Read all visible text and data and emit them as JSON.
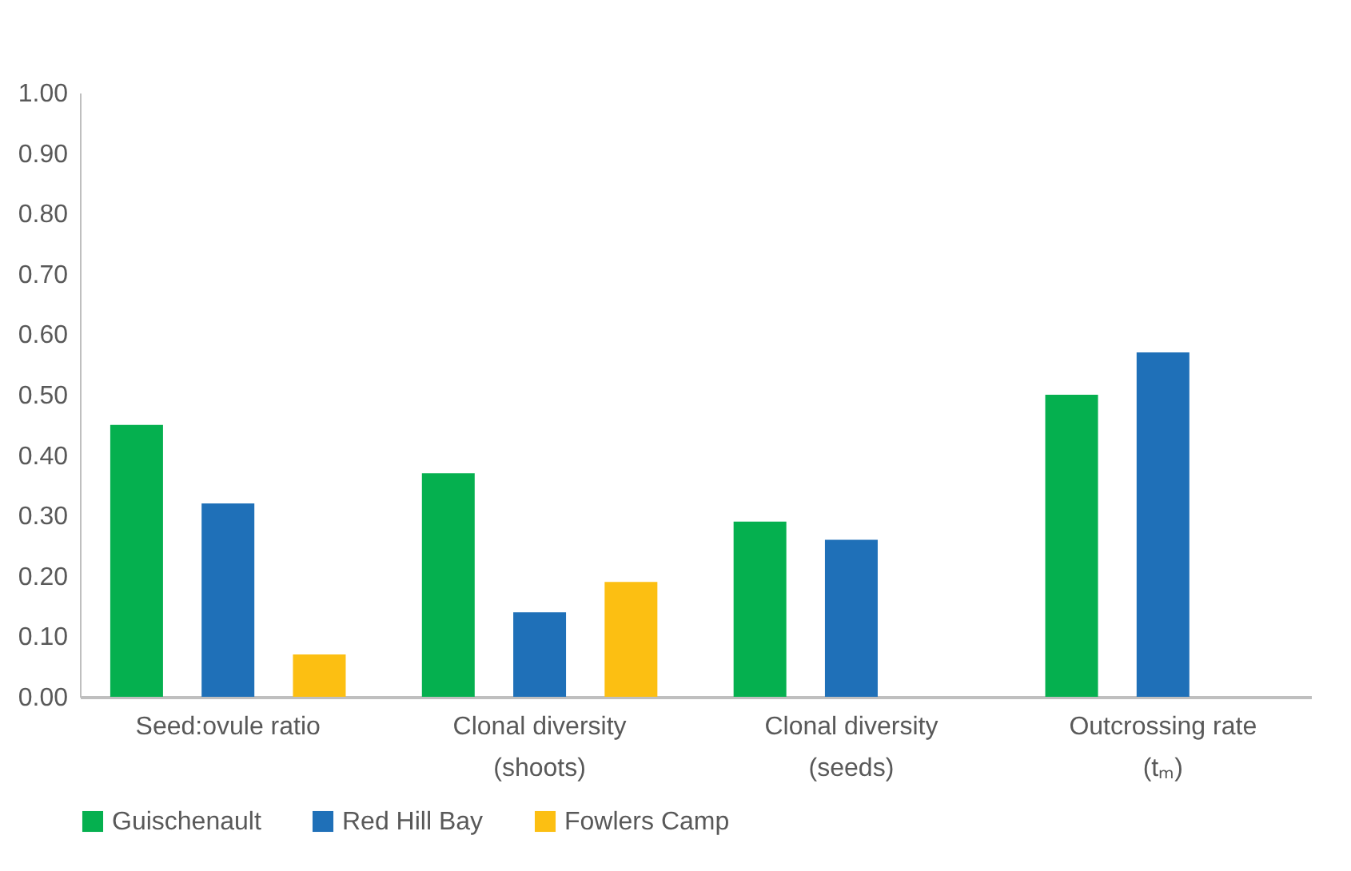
{
  "chart_data": {
    "type": "bar",
    "categories": [
      "Seed:ovule ratio",
      "Clonal diversity\n(shoots)",
      "Clonal diversity\n(seeds)",
      "Outcrossing rate\n(tₘ)"
    ],
    "series": [
      {
        "name": "Guischenault",
        "color": "#05b04f",
        "values": [
          0.45,
          0.37,
          0.29,
          0.5
        ]
      },
      {
        "name": "Red Hill Bay",
        "color": "#1f70b8",
        "values": [
          0.32,
          0.14,
          0.26,
          0.57
        ]
      },
      {
        "name": "Fowlers Camp",
        "color": "#fcbf12",
        "values": [
          0.07,
          0.19,
          null,
          null
        ]
      }
    ],
    "ylim": [
      0,
      1
    ],
    "yticks": [
      {
        "value": 0,
        "label": "0.00"
      },
      {
        "value": 0.1,
        "label": "0.10"
      },
      {
        "value": 0.2,
        "label": "0.20"
      },
      {
        "value": 0.3,
        "label": "0.30"
      },
      {
        "value": 0.4,
        "label": "0.40"
      },
      {
        "value": 0.5,
        "label": "0.50"
      },
      {
        "value": 0.6,
        "label": "0.60"
      },
      {
        "value": 0.7,
        "label": "0.70"
      },
      {
        "value": 0.8,
        "label": "0.80"
      },
      {
        "value": 0.9,
        "label": "0.90"
      },
      {
        "value": 1,
        "label": "1.00"
      }
    ],
    "grid": false,
    "legend": "bottom"
  }
}
